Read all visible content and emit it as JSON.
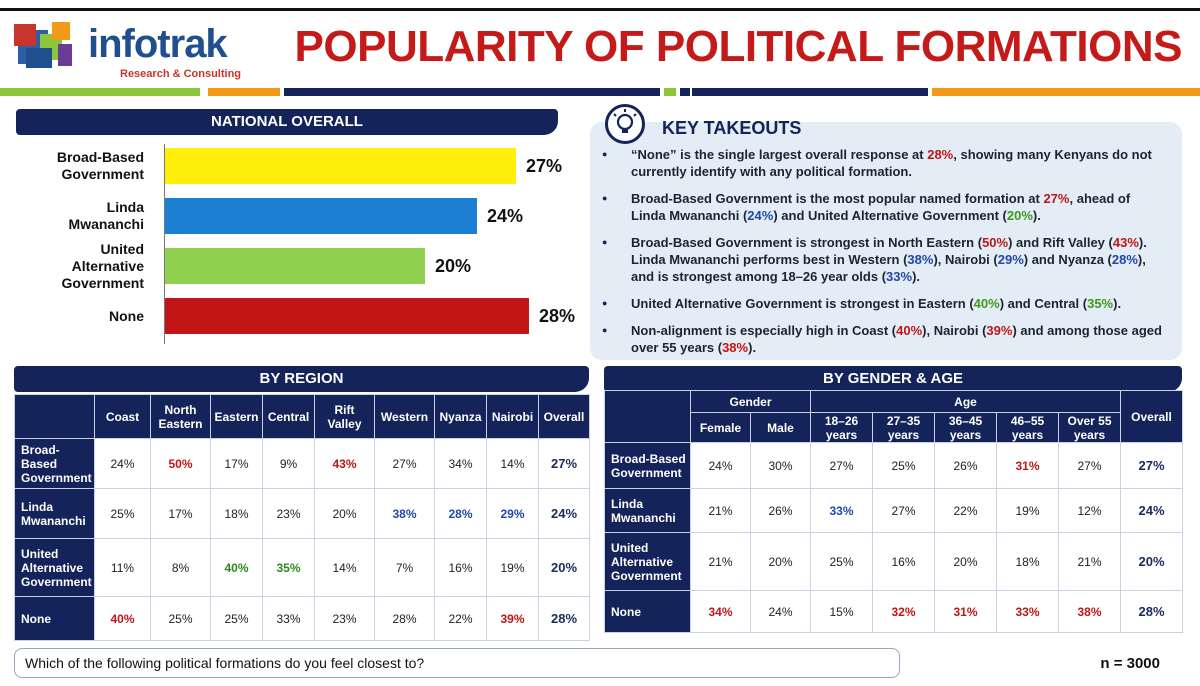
{
  "header": {
    "logo_text": "infotrak",
    "logo_sub": "Research & Consulting",
    "title": "POPULARITY OF POLITICAL FORMATIONS"
  },
  "colors": {
    "navy": "#14235a",
    "red": "#c21515",
    "blue": "#1f48a8",
    "green": "#3c9a1c",
    "orange": "#f39a1a",
    "lightgreen": "#8cc63f"
  },
  "national": {
    "heading": "NATIONAL OVERALL"
  },
  "chart_data": {
    "type": "bar",
    "orientation": "horizontal",
    "categories": [
      "Broad-Based Government",
      "Linda Mwananchi",
      "United Alternative Government",
      "None"
    ],
    "values": [
      27,
      24,
      20,
      28
    ],
    "value_labels": [
      "27%",
      "24%",
      "20%",
      "28%"
    ],
    "bar_colors": [
      "#ffef0a",
      "#1d7fd1",
      "#8fd14f",
      "#c21515"
    ],
    "xlim": [
      0,
      30
    ],
    "grid": false,
    "legend": "none",
    "title": "NATIONAL OVERALL"
  },
  "takeouts": {
    "title": "KEY TAKEOUTS",
    "items": [
      "“None” is the single largest overall response at 28%, showing many Kenyans do not currently identify with any political formation.",
      "Broad-Based Government is the most popular named formation at 27%, ahead of Linda Mwananchi (24%) and United Alternative Government (20%).",
      "Broad-Based Government is strongest in North Eastern (50%) and Rift Valley (43%). Linda Mwananchi performs best in Western (38%), Nairobi (29%) and Nyanza (28%), and is strongest among 18–26 year olds (33%).",
      "United Alternative Government is strongest in Eastern (40%) and Central (35%).",
      "Non-alignment is especially high in Coast (40%), Nairobi (39%) and among those aged over 55 years (38%)."
    ]
  },
  "region": {
    "heading": "BY REGION",
    "columns": [
      "Coast",
      "North Eastern",
      "Eastern",
      "Central",
      "Rift Valley",
      "Western",
      "Nyanza",
      "Nairobi",
      "Overall"
    ],
    "rows": [
      {
        "label": "Broad-Based Government",
        "values": [
          "24%",
          "50%",
          "17%",
          "9%",
          "43%",
          "27%",
          "34%",
          "14%",
          "27%"
        ]
      },
      {
        "label": "Linda Mwananchi",
        "values": [
          "25%",
          "17%",
          "18%",
          "23%",
          "20%",
          "38%",
          "28%",
          "29%",
          "24%"
        ]
      },
      {
        "label": "United Alternative Government",
        "values": [
          "11%",
          "8%",
          "40%",
          "35%",
          "14%",
          "7%",
          "16%",
          "19%",
          "20%"
        ]
      },
      {
        "label": "None",
        "values": [
          "40%",
          "25%",
          "25%",
          "33%",
          "23%",
          "28%",
          "22%",
          "39%",
          "28%"
        ]
      }
    ]
  },
  "gender_age": {
    "heading": "BY GENDER & AGE",
    "group_gender": "Gender",
    "group_age": "Age",
    "overall_label": "Overall",
    "columns": [
      "Female",
      "Male",
      "18–26 years",
      "27–35 years",
      "36–45 years",
      "46–55 years",
      "Over 55 years"
    ],
    "rows": [
      {
        "label": "Broad-Based Government",
        "values": [
          "24%",
          "30%",
          "27%",
          "25%",
          "26%",
          "31%",
          "27%",
          "27%"
        ]
      },
      {
        "label": "Linda Mwananchi",
        "values": [
          "21%",
          "26%",
          "33%",
          "27%",
          "22%",
          "19%",
          "12%",
          "24%"
        ]
      },
      {
        "label": "United Alternative Government",
        "values": [
          "21%",
          "20%",
          "25%",
          "16%",
          "20%",
          "18%",
          "21%",
          "20%"
        ]
      },
      {
        "label": "None",
        "values": [
          "34%",
          "24%",
          "15%",
          "32%",
          "31%",
          "33%",
          "38%",
          "28%"
        ]
      }
    ]
  },
  "footer": {
    "question": "Which of the following political formations do you feel closest to?",
    "sample": "n = 3000"
  }
}
